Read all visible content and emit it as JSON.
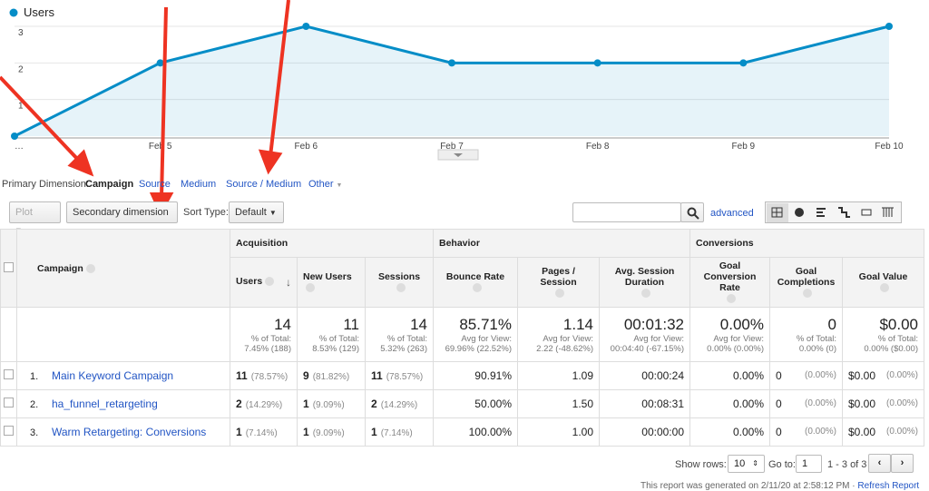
{
  "chart_data": {
    "type": "line",
    "legend": "Users",
    "categories": [
      "…",
      "Feb 5",
      "Feb 6",
      "Feb 7",
      "Feb 8",
      "Feb 9",
      "Feb 10"
    ],
    "series": [
      {
        "name": "Users",
        "color": "#058dc7",
        "values": [
          0,
          2,
          3,
          2,
          2,
          2,
          3
        ]
      }
    ],
    "ylim": [
      0,
      3
    ],
    "yticks": [
      1,
      2,
      3
    ],
    "grid": true
  },
  "primary_dimension": {
    "label": "Primary Dimension:",
    "options": [
      "Campaign",
      "Source",
      "Medium",
      "Source / Medium",
      "Other"
    ]
  },
  "toolbar": {
    "plot_rows": "Plot Rows",
    "secondary": "Secondary dimension",
    "sort_label": "Sort Type:",
    "sort": "Default",
    "advanced": "advanced"
  },
  "table": {
    "groups": [
      "Acquisition",
      "Behavior",
      "Conversions"
    ],
    "columns": [
      "Campaign",
      "Users",
      "New Users",
      "Sessions",
      "Bounce Rate",
      "Pages / Session",
      "Avg. Session Duration",
      "Goal Conversion Rate",
      "Goal Completions",
      "Goal Value"
    ],
    "totals": [
      {
        "value": "14",
        "sub": [
          "% of Total:",
          "7.45% (188)"
        ]
      },
      {
        "value": "11",
        "sub": [
          "% of Total:",
          "8.53% (129)"
        ]
      },
      {
        "value": "14",
        "sub": [
          "% of Total:",
          "5.32% (263)"
        ]
      },
      {
        "value": "85.71%",
        "sub": [
          "Avg for View:",
          "69.96% (22.52%)"
        ]
      },
      {
        "value": "1.14",
        "sub": [
          "Avg for View:",
          "2.22 (-48.62%)"
        ]
      },
      {
        "value": "00:01:32",
        "sub": [
          "Avg for View:",
          "00:04:40 (-67.15%)"
        ]
      },
      {
        "value": "0.00%",
        "sub": [
          "Avg for View:",
          "0.00% (0.00%)"
        ]
      },
      {
        "value": "0",
        "sub": [
          "% of Total:",
          "0.00% (0)"
        ]
      },
      {
        "value": "$0.00",
        "sub": [
          "% of Total:",
          "0.00% ($0.00)"
        ]
      }
    ],
    "rows": [
      {
        "index": "1.",
        "name": "Main Keyword Campaign",
        "cells": [
          [
            "11",
            "(78.57%)"
          ],
          [
            "9",
            "(81.82%)"
          ],
          [
            "11",
            "(78.57%)"
          ],
          [
            "90.91%"
          ],
          [
            "1.09"
          ],
          [
            "00:00:24"
          ],
          [
            "0.00%"
          ],
          [
            "0",
            "(0.00%)"
          ],
          [
            "$0.00",
            "(0.00%)"
          ]
        ]
      },
      {
        "index": "2.",
        "name": "ha_funnel_retargeting",
        "cells": [
          [
            "2",
            "(14.29%)"
          ],
          [
            "1",
            "(9.09%)"
          ],
          [
            "2",
            "(14.29%)"
          ],
          [
            "50.00%"
          ],
          [
            "1.50"
          ],
          [
            "00:08:31"
          ],
          [
            "0.00%"
          ],
          [
            "0",
            "(0.00%)"
          ],
          [
            "$0.00",
            "(0.00%)"
          ]
        ]
      },
      {
        "index": "3.",
        "name": "Warm Retargeting: Conversions",
        "cells": [
          [
            "1",
            "(7.14%)"
          ],
          [
            "1",
            "(9.09%)"
          ],
          [
            "1",
            "(7.14%)"
          ],
          [
            "100.00%"
          ],
          [
            "1.00"
          ],
          [
            "00:00:00"
          ],
          [
            "0.00%"
          ],
          [
            "0",
            "(0.00%)"
          ],
          [
            "$0.00",
            "(0.00%)"
          ]
        ]
      }
    ]
  },
  "footer": {
    "show_rows": "Show rows:",
    "rows_value": "10",
    "goto": "Go to:",
    "goto_value": "1",
    "range": "1 - 3 of 3",
    "generated": "This report was generated on 2/11/20 at 2:58:12 PM",
    "refresh": "Refresh Report"
  }
}
